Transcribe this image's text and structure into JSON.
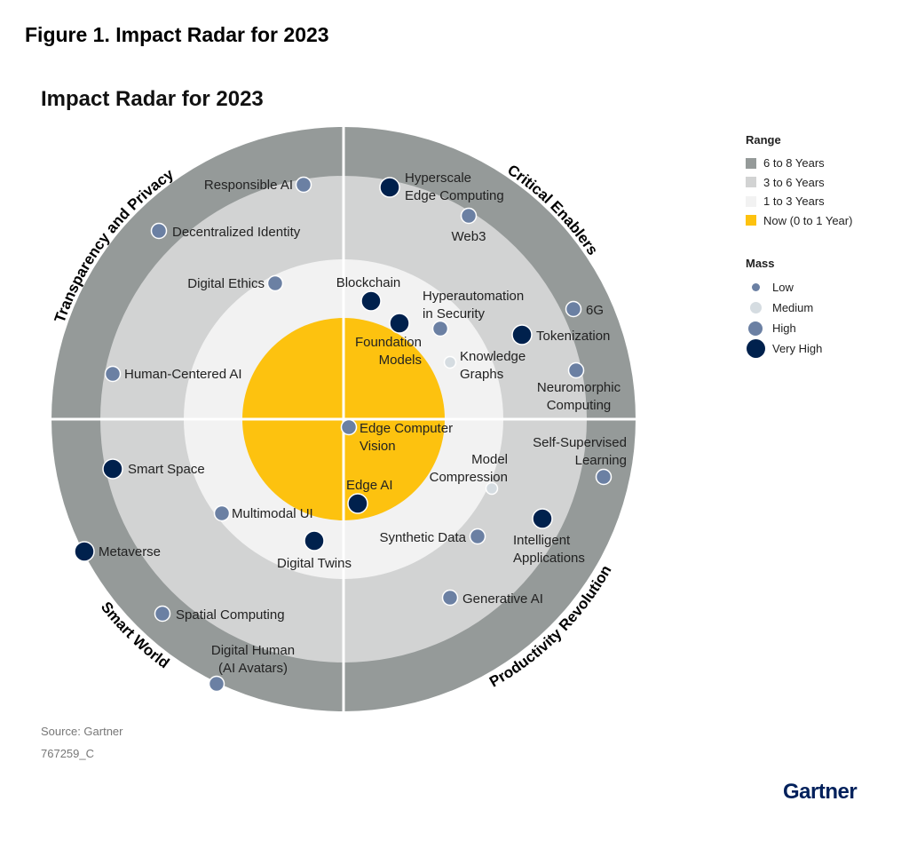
{
  "figure_title": "Figure 1. Impact Radar for 2023",
  "source": "Source: Gartner",
  "doc_id": "767259_C",
  "logo": "Gartner",
  "chart_data": {
    "type": "radar",
    "title": "Impact Radar for 2023",
    "sectors": [
      "Transparency and Privacy",
      "Critical Enablers",
      "Smart World",
      "Productivity Revolution"
    ],
    "legend": {
      "range_title": "Range",
      "ranges": [
        {
          "label": "6 to 8 Years",
          "color": "#959a99"
        },
        {
          "label": "3 to 6 Years",
          "color": "#d2d3d3"
        },
        {
          "label": "1 to 3 Years",
          "color": "#f2f2f2"
        },
        {
          "label": "Now (0 to 1 Year)",
          "color": "#fdc20f"
        }
      ],
      "mass_title": "Mass",
      "masses": [
        {
          "label": "Low",
          "color": "#6b80a3"
        },
        {
          "label": "Medium",
          "color": "#d5dce1"
        },
        {
          "label": "High",
          "color": "#6b80a3"
        },
        {
          "label": "Very High",
          "color": "#00214d"
        }
      ]
    },
    "items": [
      {
        "lines": [
          "Responsible AI"
        ],
        "mass": "High"
      },
      {
        "lines": [
          "Decentralized Identity"
        ],
        "mass": "High"
      },
      {
        "lines": [
          "Digital Ethics"
        ],
        "mass": "High"
      },
      {
        "lines": [
          "Human-Centered AI"
        ],
        "mass": "High"
      },
      {
        "lines": [
          "Hyperscale",
          "Edge Computing"
        ],
        "mass": "Very High"
      },
      {
        "lines": [
          "Web3"
        ],
        "mass": "High"
      },
      {
        "lines": [
          "Blockchain"
        ],
        "mass": "Very High"
      },
      {
        "lines": [
          "Hyperautomation",
          "in Security"
        ],
        "mass": "High"
      },
      {
        "lines": [
          "Foundation",
          "Models"
        ],
        "mass": "Very High"
      },
      {
        "lines": [
          "6G"
        ],
        "mass": "High"
      },
      {
        "lines": [
          "Tokenization"
        ],
        "mass": "Very High"
      },
      {
        "lines": [
          "Knowledge",
          "Graphs"
        ],
        "mass": "Medium"
      },
      {
        "lines": [
          "Neuromorphic",
          "Computing"
        ],
        "mass": "High"
      },
      {
        "lines": [
          "Edge Computer",
          "Vision"
        ],
        "mass": "High"
      },
      {
        "lines": [
          "Self-Supervised",
          "Learning"
        ],
        "mass": "High"
      },
      {
        "lines": [
          "Model",
          "Compression"
        ],
        "mass": "Medium"
      },
      {
        "lines": [
          "Edge AI"
        ],
        "mass": "Very High"
      },
      {
        "lines": [
          "Synthetic Data"
        ],
        "mass": "High"
      },
      {
        "lines": [
          "Intelligent",
          "Applications"
        ],
        "mass": "Very High"
      },
      {
        "lines": [
          "Generative AI"
        ],
        "mass": "High"
      },
      {
        "lines": [
          "Digital Twins"
        ],
        "mass": "Very High"
      },
      {
        "lines": [
          "Smart Space"
        ],
        "mass": "Very High"
      },
      {
        "lines": [
          "Multimodal UI"
        ],
        "mass": "High"
      },
      {
        "lines": [
          "Metaverse"
        ],
        "mass": "Very High"
      },
      {
        "lines": [
          "Spatial Computing"
        ],
        "mass": "High"
      },
      {
        "lines": [
          "Digital Human",
          "(AI Avatars)"
        ],
        "mass": "High"
      }
    ]
  }
}
